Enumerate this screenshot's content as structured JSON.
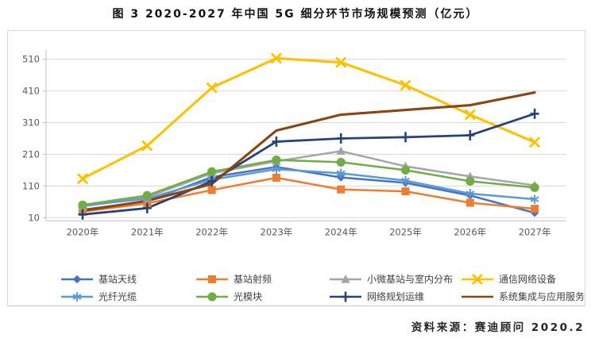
{
  "page": {
    "title": "图 3 2020-2027 年中国 5G 细分环节市场规模预测（亿元）",
    "source": "资料来源：赛迪顾问  2020.2"
  },
  "chart_data": {
    "type": "line",
    "title": "图 3 2020-2027 年中国 5G 细分环节市场规模预测（亿元）",
    "xlabel": "",
    "ylabel": "亿元",
    "categories": [
      "2020年",
      "2021年",
      "2022年",
      "2023年",
      "2024年",
      "2025年",
      "2026年",
      "2027年"
    ],
    "yticks": [
      10,
      110,
      210,
      310,
      410,
      510
    ],
    "ylim": [
      0,
      560
    ],
    "grid": true,
    "legend_position": "bottom",
    "series": [
      {
        "name": "基站天线",
        "color": "#4472C4",
        "marker": "diamond",
        "values": [
          35,
          62,
          138,
          170,
          137,
          120,
          80,
          25
        ]
      },
      {
        "name": "基站射频",
        "color": "#ED7D31",
        "marker": "square",
        "values": [
          29,
          55,
          97,
          136,
          99,
          93,
          57,
          38
        ]
      },
      {
        "name": "小微基站与室内分布",
        "color": "#A5A5A5",
        "marker": "triangle",
        "values": [
          45,
          75,
          150,
          188,
          220,
          172,
          140,
          112
        ]
      },
      {
        "name": "通信网络设备",
        "color": "#FFC000",
        "marker": "x",
        "values": [
          133,
          237,
          420,
          513,
          500,
          428,
          335,
          248
        ]
      },
      {
        "name": "光纤光缆",
        "color": "#5B9BD5",
        "marker": "asterisk",
        "values": [
          48,
          70,
          130,
          163,
          150,
          127,
          86,
          68
        ]
      },
      {
        "name": "光模块",
        "color": "#70AD47",
        "marker": "circle",
        "values": [
          50,
          80,
          155,
          192,
          185,
          160,
          125,
          105
        ]
      },
      {
        "name": "网络规划运维",
        "color": "#264478",
        "marker": "plus",
        "values": [
          20,
          40,
          125,
          250,
          260,
          264,
          270,
          338
        ]
      },
      {
        "name": "系统集成与应用服务",
        "color": "#8B4513",
        "marker": "none",
        "values": [
          32,
          63,
          116,
          285,
          335,
          350,
          365,
          405
        ]
      }
    ]
  }
}
